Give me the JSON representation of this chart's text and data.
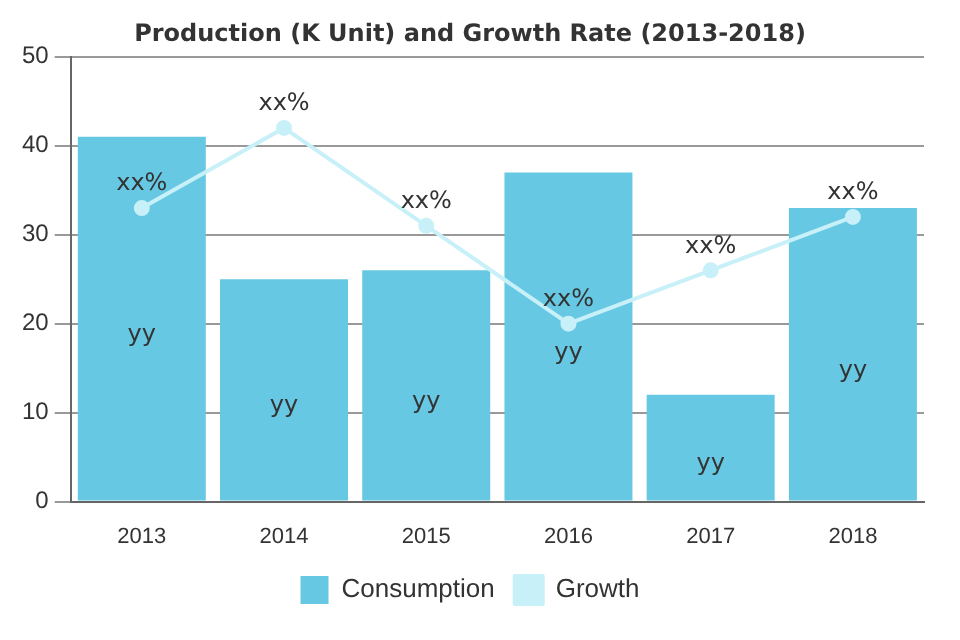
{
  "chart_data": {
    "type": "bar",
    "title": "Production (K Unit) and Growth Rate (2013-2018)",
    "categories": [
      "2013",
      "2014",
      "2015",
      "2016",
      "2017",
      "2018"
    ],
    "series": [
      {
        "name": "Consumption",
        "color": "#67c8e3",
        "values": [
          41,
          25,
          26,
          37,
          12,
          33
        ],
        "value_labels": [
          "yy",
          "yy",
          "yy",
          "yy",
          "yy",
          "yy"
        ]
      },
      {
        "name": "Growth",
        "type": "line",
        "color": "#c8f0f8",
        "marker": "circle",
        "values": [
          33,
          42,
          31,
          20,
          26,
          32
        ],
        "value_labels": [
          "xx%",
          "xx%",
          "xx%",
          "xx%",
          "xx%",
          "xx%"
        ]
      }
    ],
    "ylim": [
      0,
      50
    ],
    "yticks": [
      0,
      10,
      20,
      30,
      40,
      50
    ],
    "grid": "y",
    "legend": "bottom"
  }
}
